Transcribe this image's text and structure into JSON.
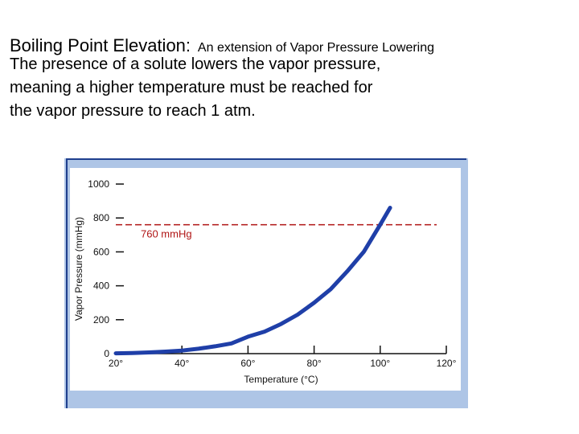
{
  "slide": {
    "title": "Boiling Point Elevation:",
    "subtitle": "An extension of Vapor Pressure Lowering",
    "body_lines": [
      "The presence of a solute lowers the vapor pressure,",
      "meaning a higher temperature must be reached for",
      "the vapor pressure to reach 1 atm."
    ]
  },
  "chart_data": {
    "type": "line",
    "title": "",
    "xlabel": "Temperature (°C)",
    "ylabel": "Vapor Pressure (mmHg)",
    "xlim": [
      20,
      120
    ],
    "ylim": [
      0,
      1000
    ],
    "x_ticks": [
      20,
      40,
      60,
      80,
      100,
      120
    ],
    "x_tick_labels": [
      "20°",
      "40°",
      "60°",
      "80°",
      "100°",
      "120°"
    ],
    "y_ticks": [
      0,
      200,
      400,
      600,
      800,
      1000
    ],
    "y_tick_labels": [
      "0",
      "200",
      "400",
      "600",
      "800",
      "1000"
    ],
    "grid": false,
    "series": [
      {
        "x": [
          20,
          25,
          30,
          35,
          40,
          45,
          50,
          55,
          60,
          65,
          70,
          75,
          80,
          85,
          90,
          95,
          100,
          103
        ],
        "values": [
          2,
          4,
          7,
          12,
          18,
          29,
          43,
          60,
          100,
          130,
          175,
          230,
          300,
          380,
          485,
          600,
          760,
          860
        ],
        "color": "#1f3fa8"
      }
    ],
    "reference_line": {
      "y": 760,
      "label": "760 mmHg",
      "color": "#b01515",
      "style": "dashed"
    },
    "colors": {
      "frame": "#aec5e6",
      "background": "#ffffff",
      "axis": "#111111"
    }
  }
}
